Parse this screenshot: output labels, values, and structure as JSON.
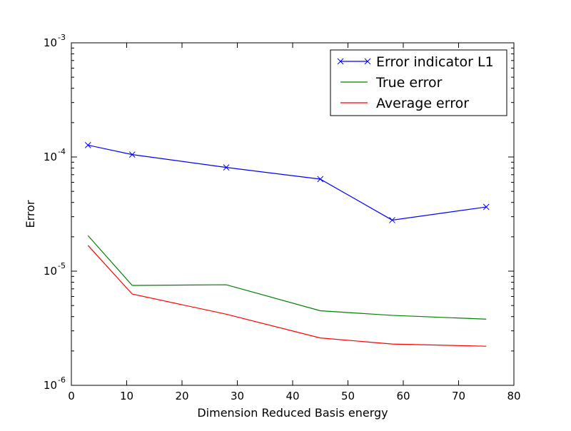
{
  "chart_data": {
    "type": "line",
    "title": "",
    "xlabel": "Dimension Reduced Basis energy",
    "ylabel": "Error",
    "xlim": [
      0,
      80
    ],
    "ylim": [
      1e-06,
      0.001
    ],
    "yscale": "log",
    "grid": false,
    "legend_position": "top-right",
    "x_ticks": [
      "0",
      "10",
      "20",
      "30",
      "40",
      "50",
      "60",
      "70",
      "80"
    ],
    "y_ticks": [
      {
        "base": "10",
        "exp": "-6"
      },
      {
        "base": "10",
        "exp": "-5"
      },
      {
        "base": "10",
        "exp": "-4"
      },
      {
        "base": "10",
        "exp": "-3"
      }
    ],
    "x": [
      3,
      11,
      28,
      45,
      58,
      75
    ],
    "series": [
      {
        "name": "Error indicator L1",
        "color": "#0000ff",
        "marker": "x",
        "values": [
          0.000127,
          0.000105,
          8.1e-05,
          6.4e-05,
          2.8e-05,
          3.65e-05
        ]
      },
      {
        "name": "True error",
        "color": "#008000",
        "marker": "none",
        "values": [
          2.05e-05,
          7.5e-06,
          7.6e-06,
          4.5e-06,
          4.1e-06,
          3.8e-06
        ]
      },
      {
        "name": "Average error",
        "color": "#ff0000",
        "marker": "none",
        "values": [
          1.68e-05,
          6.3e-06,
          4.2e-06,
          2.6e-06,
          2.3e-06,
          2.2e-06
        ]
      }
    ]
  }
}
